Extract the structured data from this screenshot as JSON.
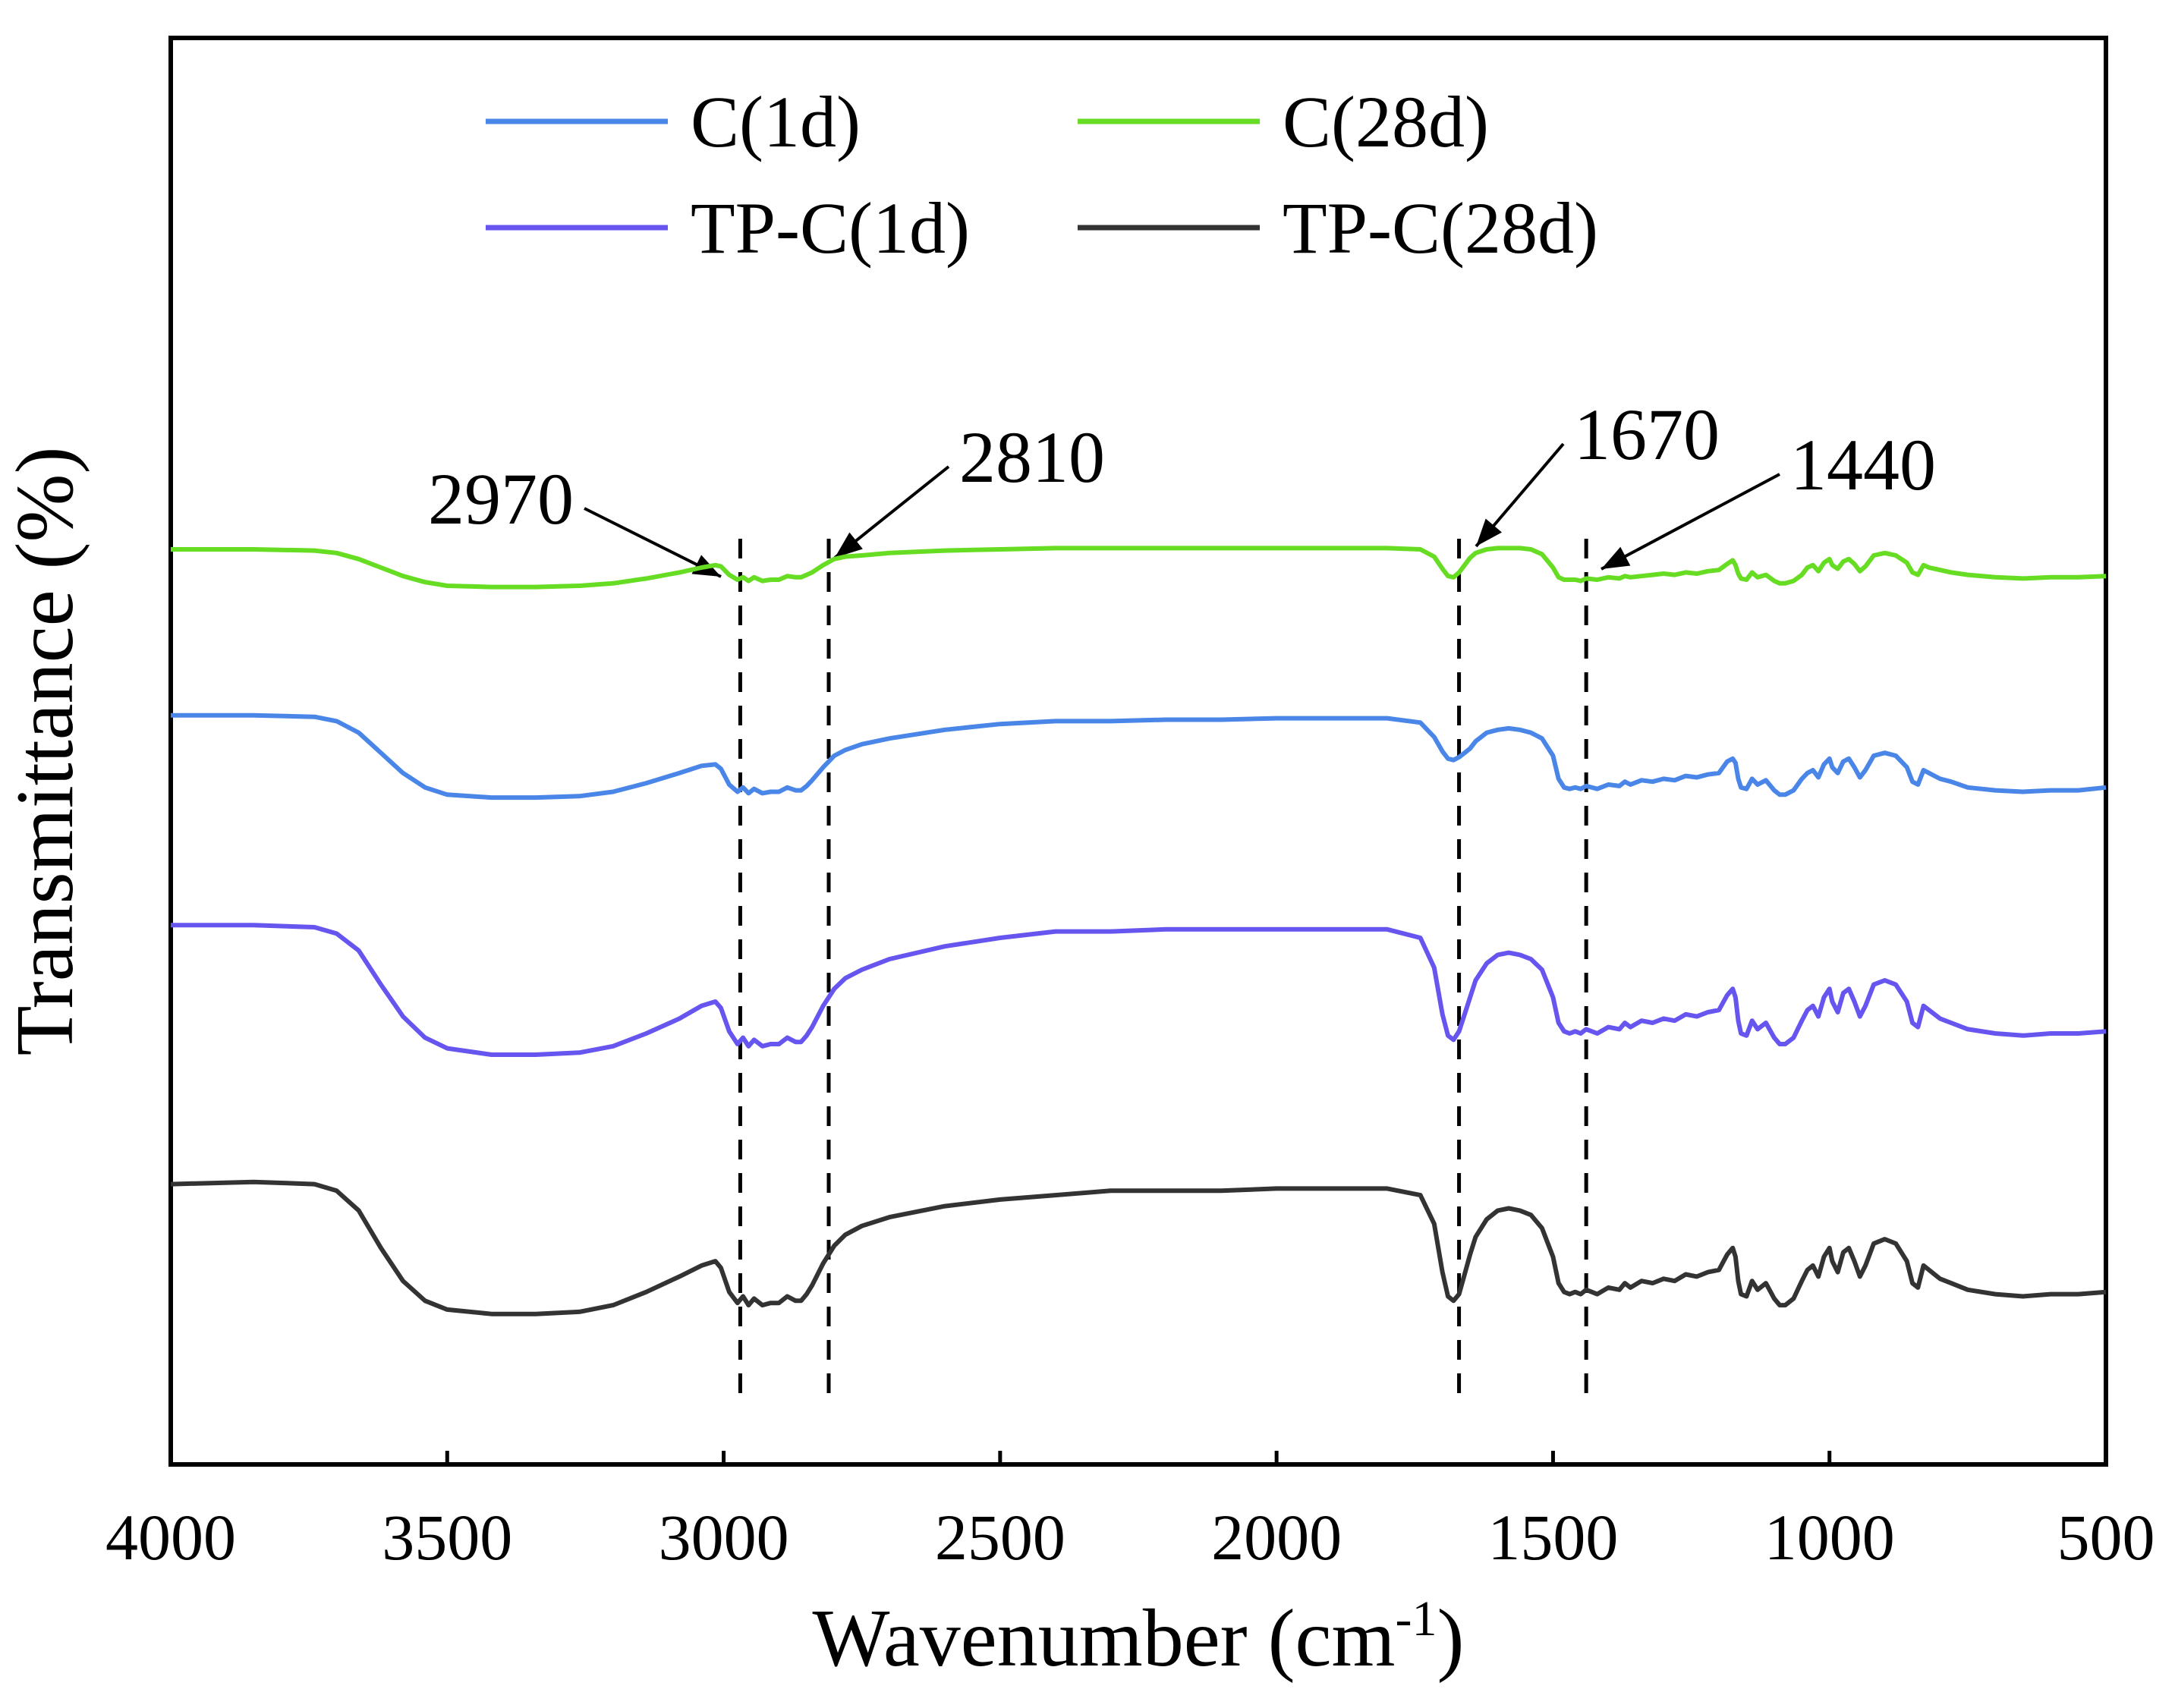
{
  "chart_data": {
    "type": "line",
    "title": "",
    "xlabel": "Wavenumber (cm",
    "xlabel_sup": "-1",
    "xlabel_close": ")",
    "ylabel": "Transmittance (%)",
    "xlim": [
      4000,
      500
    ],
    "x_reversed": true,
    "xticks": [
      4000,
      3500,
      3000,
      2500,
      2000,
      1500,
      1000,
      500
    ],
    "yticks": [],
    "grid": false,
    "legend": {
      "placement": "top-center",
      "columns": 2
    },
    "series": [
      {
        "name": "C(1d)",
        "color": "#4a86e8",
        "offset": 1,
        "x": [
          4000,
          3850,
          3740,
          3700,
          3660,
          3620,
          3580,
          3540,
          3500,
          3420,
          3340,
          3260,
          3200,
          3140,
          3080,
          3040,
          3015,
          3005,
          2990,
          2975,
          2965,
          2955,
          2945,
          2930,
          2915,
          2900,
          2885,
          2870,
          2860,
          2850,
          2840,
          2820,
          2800,
          2780,
          2750,
          2700,
          2600,
          2500,
          2400,
          2300,
          2200,
          2100,
          2000,
          1900,
          1800,
          1740,
          1715,
          1700,
          1690,
          1680,
          1670,
          1660,
          1650,
          1640,
          1620,
          1600,
          1580,
          1560,
          1540,
          1520,
          1500,
          1490,
          1480,
          1470,
          1460,
          1450,
          1440,
          1420,
          1400,
          1380,
          1370,
          1360,
          1340,
          1320,
          1300,
          1280,
          1260,
          1240,
          1220,
          1200,
          1185,
          1175,
          1170,
          1165,
          1160,
          1150,
          1140,
          1130,
          1115,
          1100,
          1090,
          1080,
          1065,
          1050,
          1040,
          1030,
          1020,
          1010,
          1000,
          995,
          985,
          975,
          965,
          955,
          945,
          935,
          920,
          900,
          880,
          860,
          850,
          840,
          830,
          820,
          810,
          800,
          780,
          750,
          700,
          650,
          600,
          550,
          500
        ],
        "y": [
          88,
          88,
          87,
          84,
          76,
          62,
          48,
          38,
          33,
          31,
          31,
          32,
          35,
          41,
          48,
          53,
          54,
          51,
          40,
          35,
          38,
          34,
          37,
          34,
          35,
          35,
          38,
          36,
          36,
          39,
          43,
          52,
          60,
          64,
          68,
          72,
          78,
          82,
          84,
          84,
          85,
          85,
          86,
          86,
          86,
          83,
          73,
          63,
          58,
          57,
          59,
          62,
          65,
          70,
          76,
          78,
          79,
          78,
          76,
          72,
          60,
          44,
          38,
          37,
          38,
          37,
          39,
          37,
          40,
          39,
          42,
          40,
          43,
          42,
          44,
          43,
          46,
          45,
          47,
          48,
          56,
          58,
          55,
          44,
          38,
          37,
          44,
          40,
          43,
          36,
          33,
          33,
          36,
          44,
          48,
          50,
          45,
          54,
          58,
          52,
          48,
          56,
          58,
          52,
          45,
          50,
          60,
          62,
          60,
          52,
          42,
          40,
          50,
          48,
          46,
          44,
          42,
          38,
          36,
          35,
          36,
          36,
          38
        ]
      },
      {
        "name": "C(28d)",
        "color": "#66dd22",
        "offset": 0,
        "x": [
          4000,
          3850,
          3740,
          3700,
          3660,
          3620,
          3580,
          3540,
          3500,
          3420,
          3340,
          3260,
          3200,
          3140,
          3080,
          3040,
          3015,
          3005,
          2990,
          2975,
          2965,
          2955,
          2945,
          2930,
          2915,
          2900,
          2885,
          2870,
          2860,
          2850,
          2840,
          2820,
          2800,
          2780,
          2750,
          2700,
          2600,
          2500,
          2400,
          2300,
          2200,
          2100,
          2000,
          1900,
          1800,
          1740,
          1715,
          1700,
          1690,
          1680,
          1670,
          1660,
          1650,
          1640,
          1620,
          1600,
          1580,
          1560,
          1540,
          1520,
          1500,
          1490,
          1480,
          1470,
          1460,
          1450,
          1440,
          1420,
          1400,
          1380,
          1370,
          1360,
          1340,
          1320,
          1300,
          1280,
          1260,
          1240,
          1220,
          1200,
          1185,
          1175,
          1170,
          1165,
          1160,
          1150,
          1140,
          1130,
          1115,
          1100,
          1090,
          1080,
          1065,
          1050,
          1040,
          1030,
          1020,
          1010,
          1000,
          995,
          985,
          975,
          965,
          955,
          945,
          935,
          920,
          900,
          880,
          860,
          850,
          840,
          830,
          820,
          810,
          800,
          780,
          750,
          700,
          650,
          600,
          550,
          500
        ],
        "y": [
          85,
          85,
          84,
          82,
          77,
          70,
          63,
          58,
          55,
          54,
          54,
          55,
          57,
          61,
          66,
          70,
          72,
          71,
          64,
          60,
          62,
          59,
          62,
          59,
          60,
          60,
          63,
          62,
          62,
          64,
          66,
          72,
          77,
          79,
          80,
          82,
          84,
          85,
          86,
          86,
          86,
          86,
          86,
          86,
          86,
          85,
          79,
          69,
          63,
          62,
          66,
          72,
          78,
          82,
          85,
          86,
          86,
          86,
          85,
          81,
          70,
          62,
          60,
          60,
          60,
          59,
          61,
          60,
          62,
          61,
          63,
          62,
          63,
          64,
          65,
          64,
          66,
          65,
          67,
          68,
          73,
          76,
          72,
          65,
          61,
          60,
          66,
          62,
          64,
          59,
          57,
          57,
          59,
          64,
          70,
          72,
          67,
          74,
          77,
          72,
          69,
          75,
          77,
          73,
          67,
          71,
          80,
          82,
          80,
          74,
          66,
          64,
          72,
          70,
          69,
          68,
          66,
          64,
          62,
          61,
          62,
          62,
          63
        ]
      },
      {
        "name": "TP-C(1d)",
        "color": "#6655ee",
        "offset": 2,
        "x": [
          4000,
          3850,
          3740,
          3700,
          3660,
          3620,
          3580,
          3540,
          3500,
          3420,
          3340,
          3260,
          3200,
          3140,
          3080,
          3040,
          3015,
          3005,
          2990,
          2975,
          2965,
          2955,
          2945,
          2930,
          2915,
          2900,
          2885,
          2870,
          2860,
          2850,
          2840,
          2820,
          2800,
          2780,
          2750,
          2700,
          2600,
          2500,
          2400,
          2300,
          2200,
          2100,
          2000,
          1900,
          1800,
          1740,
          1715,
          1700,
          1690,
          1680,
          1670,
          1660,
          1650,
          1640,
          1620,
          1600,
          1580,
          1560,
          1540,
          1520,
          1500,
          1490,
          1480,
          1470,
          1460,
          1450,
          1440,
          1420,
          1400,
          1380,
          1370,
          1360,
          1340,
          1320,
          1300,
          1280,
          1260,
          1240,
          1220,
          1200,
          1185,
          1175,
          1170,
          1165,
          1160,
          1150,
          1140,
          1130,
          1115,
          1100,
          1090,
          1080,
          1065,
          1050,
          1040,
          1030,
          1020,
          1010,
          1000,
          995,
          985,
          975,
          965,
          955,
          945,
          935,
          920,
          900,
          880,
          860,
          850,
          840,
          830,
          820,
          810,
          800,
          780,
          750,
          700,
          650,
          600,
          550,
          500
        ],
        "y": [
          86,
          86,
          85,
          82,
          74,
          58,
          43,
          33,
          28,
          25,
          25,
          26,
          29,
          35,
          42,
          48,
          50,
          47,
          36,
          30,
          33,
          29,
          32,
          29,
          30,
          30,
          33,
          31,
          31,
          34,
          38,
          48,
          56,
          61,
          65,
          70,
          76,
          80,
          83,
          83,
          84,
          84,
          84,
          84,
          84,
          80,
          66,
          44,
          34,
          32,
          36,
          44,
          52,
          60,
          68,
          72,
          73,
          72,
          70,
          65,
          52,
          40,
          36,
          35,
          36,
          35,
          37,
          35,
          38,
          37,
          40,
          38,
          41,
          40,
          42,
          41,
          44,
          43,
          45,
          46,
          53,
          56,
          52,
          41,
          35,
          34,
          41,
          37,
          40,
          33,
          30,
          30,
          33,
          41,
          46,
          48,
          43,
          52,
          56,
          50,
          45,
          54,
          56,
          50,
          43,
          48,
          58,
          60,
          58,
          50,
          40,
          38,
          48,
          46,
          44,
          42,
          40,
          37,
          35,
          34,
          35,
          35,
          36
        ]
      },
      {
        "name": "TP-C(28d)",
        "color": "#333333",
        "offset": 3,
        "x": [
          4000,
          3850,
          3740,
          3700,
          3660,
          3620,
          3580,
          3540,
          3500,
          3420,
          3340,
          3260,
          3200,
          3140,
          3080,
          3040,
          3015,
          3005,
          2990,
          2975,
          2965,
          2955,
          2945,
          2930,
          2915,
          2900,
          2885,
          2870,
          2860,
          2850,
          2840,
          2820,
          2800,
          2780,
          2750,
          2700,
          2600,
          2500,
          2400,
          2300,
          2200,
          2100,
          2000,
          1900,
          1800,
          1740,
          1715,
          1700,
          1690,
          1680,
          1670,
          1660,
          1650,
          1640,
          1620,
          1600,
          1580,
          1560,
          1540,
          1520,
          1500,
          1490,
          1480,
          1470,
          1460,
          1450,
          1440,
          1420,
          1400,
          1380,
          1370,
          1360,
          1340,
          1320,
          1300,
          1280,
          1260,
          1240,
          1220,
          1200,
          1185,
          1175,
          1170,
          1165,
          1160,
          1150,
          1140,
          1130,
          1115,
          1100,
          1090,
          1080,
          1065,
          1050,
          1040,
          1030,
          1020,
          1010,
          1000,
          995,
          985,
          975,
          965,
          955,
          945,
          935,
          920,
          900,
          880,
          860,
          850,
          840,
          830,
          820,
          810,
          800,
          780,
          750,
          700,
          650,
          600,
          550,
          500
        ],
        "y": [
          86,
          87,
          86,
          83,
          74,
          57,
          42,
          33,
          29,
          27,
          27,
          28,
          31,
          37,
          44,
          49,
          51,
          48,
          37,
          32,
          35,
          31,
          34,
          31,
          32,
          32,
          35,
          33,
          33,
          36,
          40,
          50,
          58,
          63,
          67,
          71,
          76,
          79,
          81,
          83,
          83,
          83,
          84,
          84,
          84,
          81,
          68,
          46,
          35,
          33,
          36,
          45,
          54,
          62,
          70,
          74,
          75,
          74,
          72,
          66,
          53,
          41,
          37,
          36,
          37,
          36,
          38,
          36,
          39,
          38,
          41,
          39,
          42,
          41,
          43,
          42,
          45,
          44,
          46,
          47,
          54,
          57,
          53,
          42,
          36,
          35,
          42,
          38,
          41,
          34,
          31,
          31,
          34,
          42,
          47,
          49,
          44,
          53,
          57,
          51,
          46,
          55,
          57,
          51,
          44,
          49,
          59,
          61,
          59,
          51,
          41,
          39,
          49,
          47,
          45,
          43,
          41,
          38,
          36,
          35,
          36,
          36,
          37
        ]
      }
    ],
    "annotations": [
      {
        "label": "2970",
        "x": 2970,
        "series": "C(28d)",
        "line_style": "dashed"
      },
      {
        "label": "2810",
        "x": 2810,
        "series": "C(28d)",
        "line_style": "dashed"
      },
      {
        "label": "1670",
        "x": 1670,
        "series": "C(28d)",
        "line_style": "dashed"
      },
      {
        "label": "1440",
        "x": 1440,
        "series": "C(28d)",
        "line_style": "dashed"
      }
    ]
  }
}
